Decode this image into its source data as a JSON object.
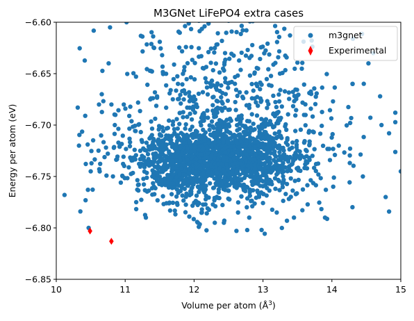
{
  "chart_data": {
    "type": "scatter",
    "title": "M3GNet LiFePO4 extra cases",
    "xlabel": "Volume per atom (Å",
    "xlabel_superscript": "3",
    "xlabel_close": ")",
    "ylabel": "Energy per atom (eV)",
    "xlim": [
      10,
      15
    ],
    "ylim": [
      -6.85,
      -6.6
    ],
    "xticks": [
      10,
      11,
      12,
      13,
      14,
      15
    ],
    "xtick_labels": [
      "10",
      "11",
      "12",
      "13",
      "14",
      "15"
    ],
    "yticks": [
      -6.85,
      -6.8,
      -6.75,
      -6.7,
      -6.65,
      -6.6
    ],
    "ytick_labels": [
      "−6.85",
      "−6.80",
      "−6.75",
      "−6.70",
      "−6.65",
      "−6.60"
    ],
    "grid": false,
    "legend_position": "top-right",
    "series": [
      {
        "name": "m3gnet",
        "marker": "circle",
        "color": "#1f77b4",
        "distribution": "dense cloud of about 2400 points centered near volume 12.3, energy −6.735",
        "point_count": 2400,
        "values": [
          {
            "x": 10.12,
            "y": -6.768
          },
          {
            "x": 10.33,
            "y": -6.72
          },
          {
            "x": 10.35,
            "y": -6.784
          },
          {
            "x": 10.42,
            "y": -6.691
          },
          {
            "x": 10.47,
            "y": -6.8
          },
          {
            "x": 10.5,
            "y": -6.745
          },
          {
            "x": 10.62,
            "y": -6.68
          },
          {
            "x": 10.66,
            "y": -6.67
          },
          {
            "x": 10.76,
            "y": -6.64
          },
          {
            "x": 10.78,
            "y": -6.605
          },
          {
            "x": 10.8,
            "y": -6.68
          },
          {
            "x": 10.85,
            "y": -6.7
          },
          {
            "x": 10.92,
            "y": -6.721
          },
          {
            "x": 10.98,
            "y": -6.68
          },
          {
            "x": 11.02,
            "y": -6.6
          },
          {
            "x": 11.16,
            "y": -6.775
          },
          {
            "x": 11.3,
            "y": -6.79
          },
          {
            "x": 11.42,
            "y": -6.625
          },
          {
            "x": 11.6,
            "y": -6.776
          },
          {
            "x": 11.93,
            "y": -6.789
          },
          {
            "x": 12.3,
            "y": -6.795
          },
          {
            "x": 12.45,
            "y": -6.63
          },
          {
            "x": 12.8,
            "y": -6.79
          },
          {
            "x": 12.98,
            "y": -6.802
          },
          {
            "x": 13.2,
            "y": -6.785
          },
          {
            "x": 13.45,
            "y": -6.79
          },
          {
            "x": 13.9,
            "y": -6.79
          },
          {
            "x": 14.1,
            "y": -6.72
          },
          {
            "x": 14.3,
            "y": -6.66
          },
          {
            "x": 14.45,
            "y": -6.75
          },
          {
            "x": 14.53,
            "y": -6.64
          },
          {
            "x": 14.6,
            "y": -6.63
          },
          {
            "x": 14.7,
            "y": -6.672
          },
          {
            "x": 14.72,
            "y": -6.7
          },
          {
            "x": 14.78,
            "y": -6.77
          },
          {
            "x": 14.83,
            "y": -6.708
          },
          {
            "x": 14.92,
            "y": -6.688
          },
          {
            "x": 15.0,
            "y": -6.745
          }
        ]
      },
      {
        "name": "Experimental",
        "marker": "thin-diamond",
        "color": "#ff0000",
        "values": [
          {
            "x": 10.49,
            "y": -6.803
          },
          {
            "x": 10.8,
            "y": -6.813
          }
        ]
      }
    ]
  }
}
